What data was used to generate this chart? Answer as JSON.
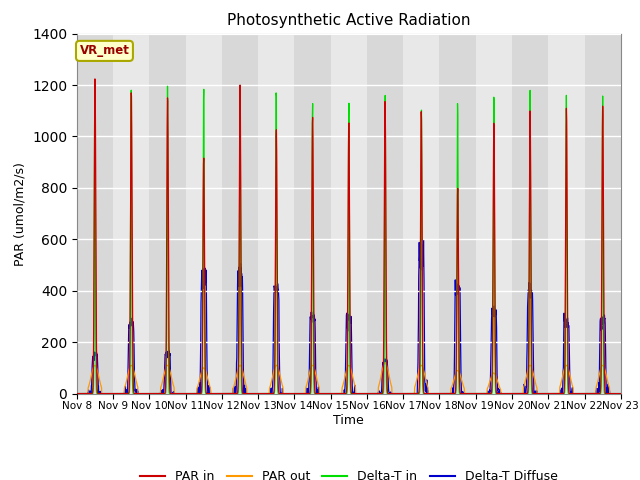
{
  "title": "Photosynthetic Active Radiation",
  "ylabel": "PAR (umol/m2/s)",
  "xlabel": "Time",
  "ylim": [
    0,
    1400
  ],
  "yticks": [
    0,
    200,
    400,
    600,
    800,
    1000,
    1200,
    1400
  ],
  "xtick_labels": [
    "Nov 8",
    "Nov 9",
    "Nov 10",
    "Nov 11",
    "Nov 12",
    "Nov 13",
    "Nov 14",
    "Nov 15",
    "Nov 16",
    "Nov 17",
    "Nov 18",
    "Nov 19",
    "Nov 20",
    "Nov 21",
    "Nov 22",
    "Nov 23"
  ],
  "colors": {
    "PAR_in": "#cc0000",
    "PAR_out": "#ff9900",
    "Delta_T_in": "#00dd00",
    "Delta_T_Diffuse": "#0000cc"
  },
  "background_color": "#ffffff",
  "plot_bg_color": "#e8e8e8",
  "grid_color": "#ffffff",
  "band_colors": [
    "#d8d8d8",
    "#e8e8e8"
  ],
  "label_box": {
    "text": "VR_met",
    "facecolor": "#ffffcc",
    "edgecolor": "#aaa800",
    "textcolor": "#990000"
  },
  "legend_labels": [
    "PAR in",
    "PAR out",
    "Delta-T in",
    "Delta-T Diffuse"
  ],
  "n_days": 15,
  "day_peaks": {
    "PAR_in": [
      1230,
      1180,
      1160,
      920,
      1200,
      1030,
      1080,
      1065,
      1150,
      1100,
      800,
      1060,
      1100,
      1110,
      1120
    ],
    "PAR_out": [
      110,
      110,
      110,
      100,
      110,
      110,
      110,
      110,
      120,
      110,
      90,
      80,
      110,
      110,
      110
    ],
    "Delta_T_in": [
      1220,
      1190,
      1200,
      1200,
      1200,
      1195,
      1140,
      1140,
      1170,
      1130,
      1140,
      1180,
      1180,
      1160,
      1165
    ],
    "Delta_T_Diff": [
      150,
      270,
      155,
      450,
      460,
      410,
      290,
      290,
      125,
      530,
      410,
      310,
      400,
      280,
      280
    ]
  },
  "day_rise": 7.5,
  "day_set": 16.5,
  "sigma_green": 0.35,
  "sigma_red": 0.5,
  "sigma_orange": 2.5,
  "sigma_blue_rise": 0.4,
  "sigma_blue_fall": 0.4
}
